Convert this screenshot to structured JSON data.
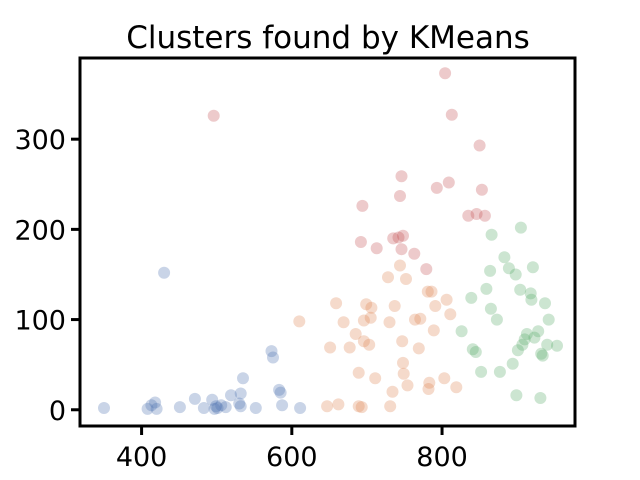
{
  "chart_data": {
    "type": "scatter",
    "title": "Clusters found by KMeans",
    "xlabel": "",
    "ylabel": "",
    "xlim": [
      318,
      977
    ],
    "ylim": [
      -18,
      390
    ],
    "x_ticks": [
      400,
      600,
      800
    ],
    "y_ticks": [
      0,
      100,
      200,
      300
    ],
    "grid": false,
    "legend": "none",
    "series": [
      {
        "color": "#4c72b0",
        "points": [
          [
            350,
            2
          ],
          [
            408,
            1
          ],
          [
            413,
            5
          ],
          [
            418,
            8
          ],
          [
            420,
            1
          ],
          [
            430,
            152
          ],
          [
            451,
            3
          ],
          [
            471,
            12
          ],
          [
            483,
            2
          ],
          [
            494,
            11
          ],
          [
            497,
            1
          ],
          [
            499,
            4
          ],
          [
            501,
            2
          ],
          [
            506,
            5
          ],
          [
            512,
            3
          ],
          [
            519,
            16
          ],
          [
            530,
            7
          ],
          [
            532,
            18
          ],
          [
            535,
            35
          ],
          [
            532,
            4
          ],
          [
            552,
            2
          ],
          [
            573,
            65
          ],
          [
            575,
            58
          ],
          [
            583,
            22
          ],
          [
            585,
            19
          ],
          [
            587,
            5
          ],
          [
            611,
            2
          ]
        ]
      },
      {
        "color": "#dd8452",
        "points": [
          [
            610,
            98
          ],
          [
            647,
            4
          ],
          [
            651,
            69
          ],
          [
            662,
            6
          ],
          [
            659,
            118
          ],
          [
            669,
            97
          ],
          [
            677,
            69
          ],
          [
            685,
            84
          ],
          [
            689,
            41
          ],
          [
            689,
            4
          ],
          [
            693,
            3
          ],
          [
            696,
            76
          ],
          [
            696,
            99
          ],
          [
            699,
            117
          ],
          [
            703,
            72
          ],
          [
            705,
            102
          ],
          [
            706,
            113
          ],
          [
            711,
            35
          ],
          [
            728,
            147
          ],
          [
            730,
            97
          ],
          [
            731,
            4
          ],
          [
            734,
            20
          ],
          [
            737,
            115
          ],
          [
            744,
            160
          ],
          [
            747,
            76
          ],
          [
            748,
            52
          ],
          [
            749,
            40
          ],
          [
            754,
            27
          ],
          [
            752,
            145
          ],
          [
            764,
            100
          ],
          [
            769,
            68
          ],
          [
            771,
            101
          ],
          [
            781,
            131
          ],
          [
            782,
            23
          ],
          [
            783,
            30
          ],
          [
            786,
            131
          ],
          [
            789,
            88
          ],
          [
            791,
            115
          ],
          [
            803,
            35
          ],
          [
            806,
            122
          ],
          [
            811,
            106
          ],
          [
            819,
            25
          ]
        ]
      },
      {
        "color": "#55a868",
        "points": [
          [
            826,
            87
          ],
          [
            839,
            124
          ],
          [
            841,
            67
          ],
          [
            845,
            64
          ],
          [
            852,
            42
          ],
          [
            859,
            134
          ],
          [
            864,
            154
          ],
          [
            865,
            112
          ],
          [
            866,
            194
          ],
          [
            873,
            100
          ],
          [
            877,
            42
          ],
          [
            883,
            169
          ],
          [
            889,
            157
          ],
          [
            894,
            51
          ],
          [
            898,
            150
          ],
          [
            899,
            16
          ],
          [
            901,
            66
          ],
          [
            904,
            133
          ],
          [
            905,
            202
          ],
          [
            907,
            72
          ],
          [
            910,
            78
          ],
          [
            913,
            84
          ],
          [
            918,
            129
          ],
          [
            919,
            122
          ],
          [
            921,
            158
          ],
          [
            923,
            80
          ],
          [
            928,
            87
          ],
          [
            931,
            13
          ],
          [
            932,
            62
          ],
          [
            934,
            60
          ],
          [
            937,
            118
          ],
          [
            940,
            72
          ],
          [
            942,
            100
          ],
          [
            953,
            71
          ]
        ]
      },
      {
        "color": "#c44e52",
        "points": [
          [
            496,
            326
          ],
          [
            692,
            186
          ],
          [
            694,
            226
          ],
          [
            713,
            179
          ],
          [
            735,
            190
          ],
          [
            742,
            191
          ],
          [
            744,
            237
          ],
          [
            746,
            259
          ],
          [
            748,
            193
          ],
          [
            746,
            178
          ],
          [
            763,
            173
          ],
          [
            779,
            156
          ],
          [
            793,
            246
          ],
          [
            804,
            373
          ],
          [
            809,
            252
          ],
          [
            813,
            327
          ],
          [
            835,
            215
          ],
          [
            846,
            217
          ],
          [
            850,
            293
          ],
          [
            853,
            244
          ],
          [
            857,
            215
          ]
        ]
      }
    ]
  }
}
